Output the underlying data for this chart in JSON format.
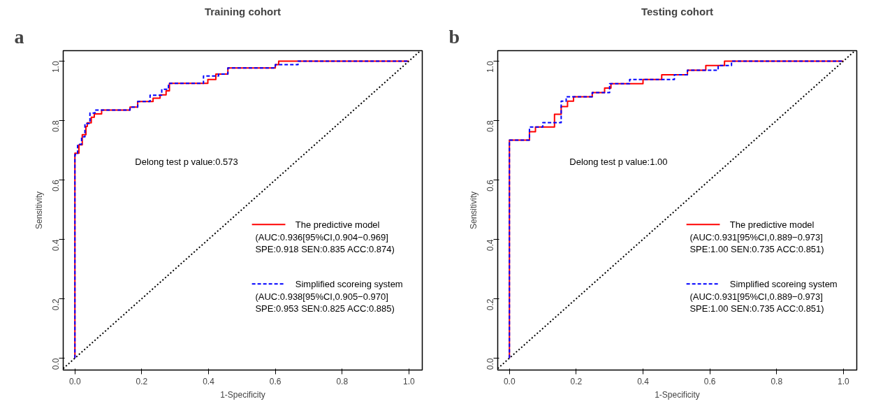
{
  "chart_data": [
    {
      "type": "line",
      "title": "Training cohort",
      "xlabel": "1-Specificity",
      "ylabel": "Sensitivity",
      "xlim": [
        -0.035,
        1.04
      ],
      "ylim": [
        -0.04,
        1.035
      ],
      "xticks": [
        {
          "value": 0,
          "label": "0.0"
        },
        {
          "value": 0.2,
          "label": "0.2"
        },
        {
          "value": 0.4,
          "label": "0.4"
        },
        {
          "value": 0.6,
          "label": "0.6"
        },
        {
          "value": 0.8,
          "label": "0.8"
        },
        {
          "value": 1,
          "label": "1.0"
        }
      ],
      "yticks": [
        {
          "value": 0,
          "label": "0.0"
        },
        {
          "value": 0.2,
          "label": "0.2"
        },
        {
          "value": 0.4,
          "label": "0.4"
        },
        {
          "value": 0.6,
          "label": "0.6"
        },
        {
          "value": 0.8,
          "label": "0.8"
        },
        {
          "value": 1,
          "label": "1.0"
        }
      ],
      "grid": false,
      "legend": "right",
      "annotations": [
        "a",
        "Delong test p value:0.573",
        "(AUC:0.936[95%CI,0.904−0.969]\nSPE:0.918  SEN:0.835 ACC:0.874)",
        "(AUC:0.938[95%CI,0.905−0.970]\nSPE:0.953  SEN:0.825 ACC:0.885)"
      ],
      "series": [
        {
          "name": "The predictive model",
          "color": "#ff0000",
          "line_style": "solid",
          "x": [
            0,
            0,
            0.012,
            0.012,
            0.022,
            0.022,
            0.033,
            0.033,
            0.037,
            0.037,
            0.049,
            0.049,
            0.058,
            0.058,
            0.08,
            0.08,
            0.165,
            0.165,
            0.188,
            0.188,
            0.234,
            0.234,
            0.255,
            0.255,
            0.273,
            0.273,
            0.283,
            0.283,
            0.398,
            0.398,
            0.422,
            0.422,
            0.458,
            0.458,
            0.6,
            0.6,
            0.61,
            0.61,
            1
          ],
          "values": [
            0,
            0.69,
            0.69,
            0.718,
            0.718,
            0.752,
            0.752,
            0.78,
            0.78,
            0.792,
            0.792,
            0.811,
            0.811,
            0.822,
            0.822,
            0.835,
            0.835,
            0.845,
            0.845,
            0.864,
            0.864,
            0.875,
            0.875,
            0.886,
            0.886,
            0.9,
            0.9,
            0.925,
            0.925,
            0.938,
            0.938,
            0.956,
            0.956,
            0.977,
            0.977,
            0.988,
            0.988,
            1,
            1
          ]
        },
        {
          "name": "Simplified scoreing system",
          "color": "#0000ff",
          "line_style": "dashed",
          "x": [
            0,
            0,
            0.008,
            0.008,
            0.02,
            0.02,
            0.03,
            0.03,
            0.045,
            0.045,
            0.06,
            0.06,
            0.165,
            0.165,
            0.188,
            0.188,
            0.225,
            0.225,
            0.26,
            0.26,
            0.28,
            0.28,
            0.385,
            0.385,
            0.43,
            0.43,
            0.458,
            0.458,
            0.6,
            0.6,
            0.668,
            0.668,
            1
          ],
          "values": [
            0,
            0.685,
            0.685,
            0.72,
            0.72,
            0.745,
            0.745,
            0.79,
            0.79,
            0.825,
            0.825,
            0.835,
            0.835,
            0.845,
            0.845,
            0.864,
            0.864,
            0.885,
            0.885,
            0.905,
            0.905,
            0.925,
            0.925,
            0.95,
            0.95,
            0.956,
            0.956,
            0.977,
            0.977,
            0.988,
            0.988,
            1,
            1
          ]
        },
        {
          "color": "#000000",
          "line_style": "dotted",
          "x": [
            -0.035,
            1.035
          ],
          "values": [
            -0.035,
            1.035
          ]
        }
      ]
    },
    {
      "type": "line",
      "title": "Testing cohort",
      "xlabel": "1-Specificity",
      "ylabel": "Sensitivity",
      "xlim": [
        -0.035,
        1.04
      ],
      "ylim": [
        -0.04,
        1.035
      ],
      "xticks": [
        {
          "value": 0,
          "label": "0.0"
        },
        {
          "value": 0.2,
          "label": "0.2"
        },
        {
          "value": 0.4,
          "label": "0.4"
        },
        {
          "value": 0.6,
          "label": "0.6"
        },
        {
          "value": 0.8,
          "label": "0.8"
        },
        {
          "value": 1,
          "label": "1.0"
        }
      ],
      "yticks": [
        {
          "value": 0,
          "label": "0.0"
        },
        {
          "value": 0.2,
          "label": "0.2"
        },
        {
          "value": 0.4,
          "label": "0.4"
        },
        {
          "value": 0.6,
          "label": "0.6"
        },
        {
          "value": 0.8,
          "label": "0.8"
        },
        {
          "value": 1,
          "label": "1.0"
        }
      ],
      "grid": false,
      "legend": "right",
      "annotations": [
        "b",
        "Delong test p value:1.00",
        "(AUC:0.931[95%CI,0.889−0.973]\nSPE:1.00  SEN:0.735 ACC:0.851)",
        "(AUC:0.931[95%CI,0.889−0.973]\nSPE:1.00  SEN:0.735 ACC:0.851)"
      ],
      "series": [
        {
          "name": "The predictive model",
          "color": "#ff0000",
          "line_style": "solid",
          "x": [
            0,
            0,
            0.06,
            0.06,
            0.078,
            0.078,
            0.135,
            0.135,
            0.155,
            0.155,
            0.174,
            0.174,
            0.192,
            0.192,
            0.248,
            0.248,
            0.285,
            0.285,
            0.304,
            0.304,
            0.4,
            0.4,
            0.456,
            0.456,
            0.533,
            0.533,
            0.588,
            0.588,
            0.644,
            0.644,
            1
          ],
          "values": [
            0,
            0.734,
            0.734,
            0.762,
            0.762,
            0.778,
            0.778,
            0.821,
            0.821,
            0.847,
            0.847,
            0.865,
            0.865,
            0.88,
            0.88,
            0.894,
            0.894,
            0.909,
            0.909,
            0.924,
            0.924,
            0.938,
            0.938,
            0.954,
            0.954,
            0.969,
            0.969,
            0.985,
            0.985,
            1,
            1
          ]
        },
        {
          "name": "Simplified scoreing system",
          "color": "#0000ff",
          "line_style": "dashed",
          "x": [
            0,
            0,
            0.06,
            0.06,
            0.1,
            0.1,
            0.155,
            0.155,
            0.17,
            0.17,
            0.248,
            0.248,
            0.3,
            0.3,
            0.36,
            0.36,
            0.494,
            0.494,
            0.533,
            0.533,
            0.625,
            0.625,
            0.665,
            0.665,
            1
          ],
          "values": [
            0,
            0.734,
            0.734,
            0.778,
            0.778,
            0.793,
            0.793,
            0.865,
            0.865,
            0.88,
            0.88,
            0.894,
            0.894,
            0.924,
            0.924,
            0.938,
            0.938,
            0.954,
            0.954,
            0.969,
            0.969,
            0.985,
            0.985,
            1,
            1
          ]
        },
        {
          "color": "#000000",
          "line_style": "dotted",
          "x": [
            -0.035,
            1.035
          ],
          "values": [
            -0.035,
            1.035
          ]
        }
      ]
    }
  ]
}
